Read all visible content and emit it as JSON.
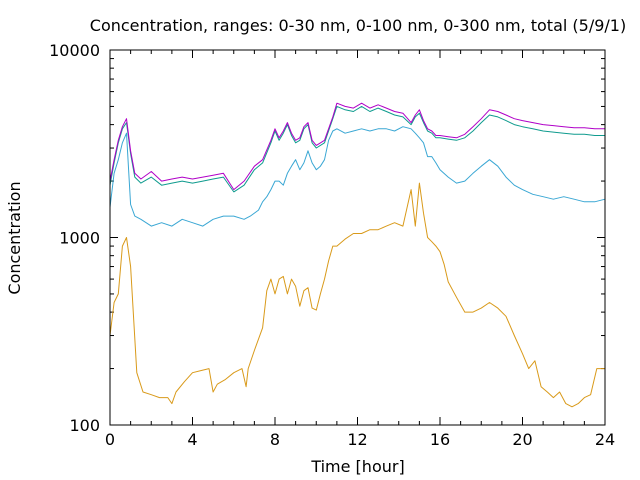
{
  "chart_data": {
    "type": "line",
    "title": "Concentration, ranges: 0-30 nm, 0-100 nm, 0-300 nm, total (5/9/1)",
    "xlabel": "Time [hour]",
    "ylabel": "Concentration",
    "xlim": [
      0,
      24
    ],
    "ylim": [
      100,
      10000
    ],
    "y_scale": "log",
    "grid": false,
    "x_ticks": [
      0,
      4,
      8,
      12,
      16,
      20,
      24
    ],
    "x_tick_labels": [
      "0",
      "4",
      "8",
      "12",
      "16",
      "20",
      "24"
    ],
    "y_ticks": [
      100,
      1000,
      10000
    ],
    "y_tick_labels": [
      "100",
      "1000",
      "10000"
    ],
    "x_minor_step": 1,
    "y_minor": [
      200,
      300,
      400,
      500,
      600,
      700,
      800,
      900,
      2000,
      3000,
      4000,
      5000,
      6000,
      7000,
      8000,
      9000
    ],
    "series": [
      {
        "color": "#d99a1a",
        "x": [
          0,
          0.2,
          0.4,
          0.6,
          0.8,
          1.0,
          1.3,
          1.6,
          2.0,
          2.4,
          2.8,
          3.0,
          3.2,
          3.6,
          4.0,
          4.4,
          4.8,
          5.0,
          5.2,
          5.6,
          6.0,
          6.4,
          6.6,
          6.7,
          7.0,
          7.4,
          7.6,
          7.8,
          8.0,
          8.2,
          8.4,
          8.6,
          8.8,
          9.0,
          9.2,
          9.4,
          9.6,
          9.8,
          10.0,
          10.2,
          10.4,
          10.6,
          10.8,
          11.0,
          11.4,
          11.8,
          12.2,
          12.6,
          13.0,
          13.4,
          13.8,
          14.2,
          14.6,
          14.8,
          15.0,
          15.2,
          15.4,
          15.6,
          15.8,
          16.0,
          16.2,
          16.4,
          16.8,
          17.2,
          17.6,
          18.0,
          18.4,
          18.8,
          19.2,
          19.6,
          20.0,
          20.3,
          20.6,
          20.9,
          21.2,
          21.5,
          21.8,
          22.1,
          22.4,
          22.7,
          23.0,
          23.3,
          23.6,
          24.0
        ],
        "y": [
          300,
          450,
          500,
          900,
          1000,
          700,
          190,
          150,
          145,
          140,
          140,
          130,
          150,
          170,
          190,
          195,
          200,
          150,
          165,
          175,
          190,
          200,
          160,
          200,
          250,
          330,
          520,
          600,
          500,
          600,
          620,
          500,
          600,
          550,
          430,
          520,
          540,
          420,
          410,
          500,
          600,
          750,
          900,
          900,
          980,
          1050,
          1050,
          1100,
          1100,
          1150,
          1200,
          1150,
          1800,
          1150,
          1950,
          1350,
          1000,
          950,
          900,
          840,
          720,
          580,
          480,
          400,
          400,
          420,
          450,
          420,
          380,
          300,
          240,
          200,
          220,
          160,
          150,
          140,
          150,
          130,
          125,
          130,
          140,
          145,
          200,
          200
        ]
      },
      {
        "color": "#3aa7d4",
        "x": [
          0,
          0.2,
          0.4,
          0.6,
          0.8,
          1.0,
          1.2,
          1.5,
          2.0,
          2.5,
          3.0,
          3.5,
          4.0,
          4.5,
          5.0,
          5.5,
          6.0,
          6.5,
          6.8,
          7.0,
          7.2,
          7.4,
          7.6,
          7.8,
          8.0,
          8.2,
          8.4,
          8.6,
          8.8,
          9.0,
          9.2,
          9.4,
          9.6,
          9.8,
          10.0,
          10.2,
          10.4,
          10.6,
          10.8,
          11.0,
          11.4,
          11.8,
          12.2,
          12.6,
          13.0,
          13.4,
          13.8,
          14.2,
          14.6,
          14.8,
          15.0,
          15.2,
          15.4,
          15.6,
          15.8,
          16.0,
          16.4,
          16.8,
          17.2,
          17.6,
          18.0,
          18.4,
          18.8,
          19.2,
          19.6,
          20.0,
          20.5,
          21.0,
          21.5,
          22.0,
          22.5,
          23.0,
          23.5,
          24.0
        ],
        "y": [
          1450,
          2200,
          2600,
          3200,
          3600,
          1500,
          1300,
          1250,
          1150,
          1200,
          1150,
          1250,
          1200,
          1150,
          1250,
          1300,
          1300,
          1250,
          1300,
          1350,
          1400,
          1550,
          1650,
          1800,
          2000,
          2000,
          1900,
          2200,
          2400,
          2600,
          2300,
          2500,
          2900,
          2500,
          2300,
          2400,
          2600,
          3300,
          3700,
          3800,
          3600,
          3700,
          3800,
          3700,
          3800,
          3800,
          3700,
          3900,
          3800,
          3600,
          3400,
          3200,
          2700,
          2700,
          2500,
          2300,
          2100,
          1950,
          2000,
          2200,
          2400,
          2600,
          2400,
          2100,
          1900,
          1800,
          1700,
          1650,
          1600,
          1650,
          1600,
          1550,
          1550,
          1600
        ]
      },
      {
        "color": "#0f9b8e",
        "x": [
          0,
          0.2,
          0.4,
          0.6,
          0.8,
          1.0,
          1.2,
          1.5,
          2.0,
          2.5,
          3.0,
          3.5,
          4.0,
          4.5,
          5.0,
          5.5,
          6.0,
          6.5,
          7.0,
          7.4,
          7.8,
          8.0,
          8.2,
          8.4,
          8.6,
          8.8,
          9.0,
          9.2,
          9.4,
          9.6,
          9.8,
          10.0,
          10.4,
          10.8,
          11.0,
          11.4,
          11.8,
          12.2,
          12.6,
          13.0,
          13.4,
          13.8,
          14.2,
          14.6,
          14.8,
          15.0,
          15.2,
          15.4,
          15.6,
          15.8,
          16.0,
          16.4,
          16.8,
          17.2,
          17.6,
          18.0,
          18.4,
          18.8,
          19.2,
          19.6,
          20.0,
          20.5,
          21.0,
          21.5,
          22.0,
          22.5,
          23.0,
          23.5,
          24.0
        ],
        "y": [
          1900,
          2500,
          3200,
          3800,
          4100,
          2800,
          2100,
          1950,
          2100,
          1900,
          1950,
          2000,
          1950,
          2000,
          2050,
          2100,
          1750,
          1900,
          2300,
          2500,
          3200,
          3700,
          3300,
          3600,
          4000,
          3500,
          3200,
          3300,
          3800,
          4000,
          3200,
          3000,
          3200,
          4300,
          5000,
          4800,
          4700,
          5000,
          4700,
          4900,
          4700,
          4500,
          4400,
          4000,
          4400,
          4600,
          4100,
          3700,
          3600,
          3400,
          3400,
          3350,
          3300,
          3400,
          3700,
          4100,
          4500,
          4400,
          4200,
          4000,
          3900,
          3800,
          3700,
          3650,
          3600,
          3550,
          3550,
          3500,
          3500
        ]
      },
      {
        "color": "#b000c8",
        "x": [
          0,
          0.2,
          0.4,
          0.6,
          0.8,
          1.0,
          1.2,
          1.5,
          2.0,
          2.5,
          3.0,
          3.5,
          4.0,
          4.5,
          5.0,
          5.5,
          6.0,
          6.5,
          7.0,
          7.4,
          7.8,
          8.0,
          8.2,
          8.4,
          8.6,
          8.8,
          9.0,
          9.2,
          9.4,
          9.6,
          9.8,
          10.0,
          10.4,
          10.8,
          11.0,
          11.4,
          11.8,
          12.2,
          12.6,
          13.0,
          13.4,
          13.8,
          14.2,
          14.6,
          14.8,
          15.0,
          15.2,
          15.4,
          15.6,
          15.8,
          16.0,
          16.4,
          16.8,
          17.2,
          17.6,
          18.0,
          18.4,
          18.8,
          19.2,
          19.6,
          20.0,
          20.5,
          21.0,
          21.5,
          22.0,
          22.5,
          23.0,
          23.5,
          24.0
        ],
        "y": [
          2000,
          2600,
          3300,
          3900,
          4300,
          2900,
          2200,
          2050,
          2250,
          2000,
          2050,
          2100,
          2050,
          2100,
          2150,
          2200,
          1800,
          2000,
          2400,
          2600,
          3300,
          3800,
          3400,
          3700,
          4100,
          3600,
          3300,
          3400,
          3900,
          4100,
          3300,
          3100,
          3300,
          4400,
          5200,
          5000,
          4900,
          5200,
          4900,
          5100,
          4900,
          4700,
          4600,
          4100,
          4500,
          4800,
          4200,
          3800,
          3700,
          3500,
          3500,
          3450,
          3400,
          3550,
          3900,
          4300,
          4800,
          4700,
          4500,
          4300,
          4200,
          4100,
          4000,
          3950,
          3900,
          3850,
          3850,
          3800,
          3800
        ]
      }
    ]
  }
}
